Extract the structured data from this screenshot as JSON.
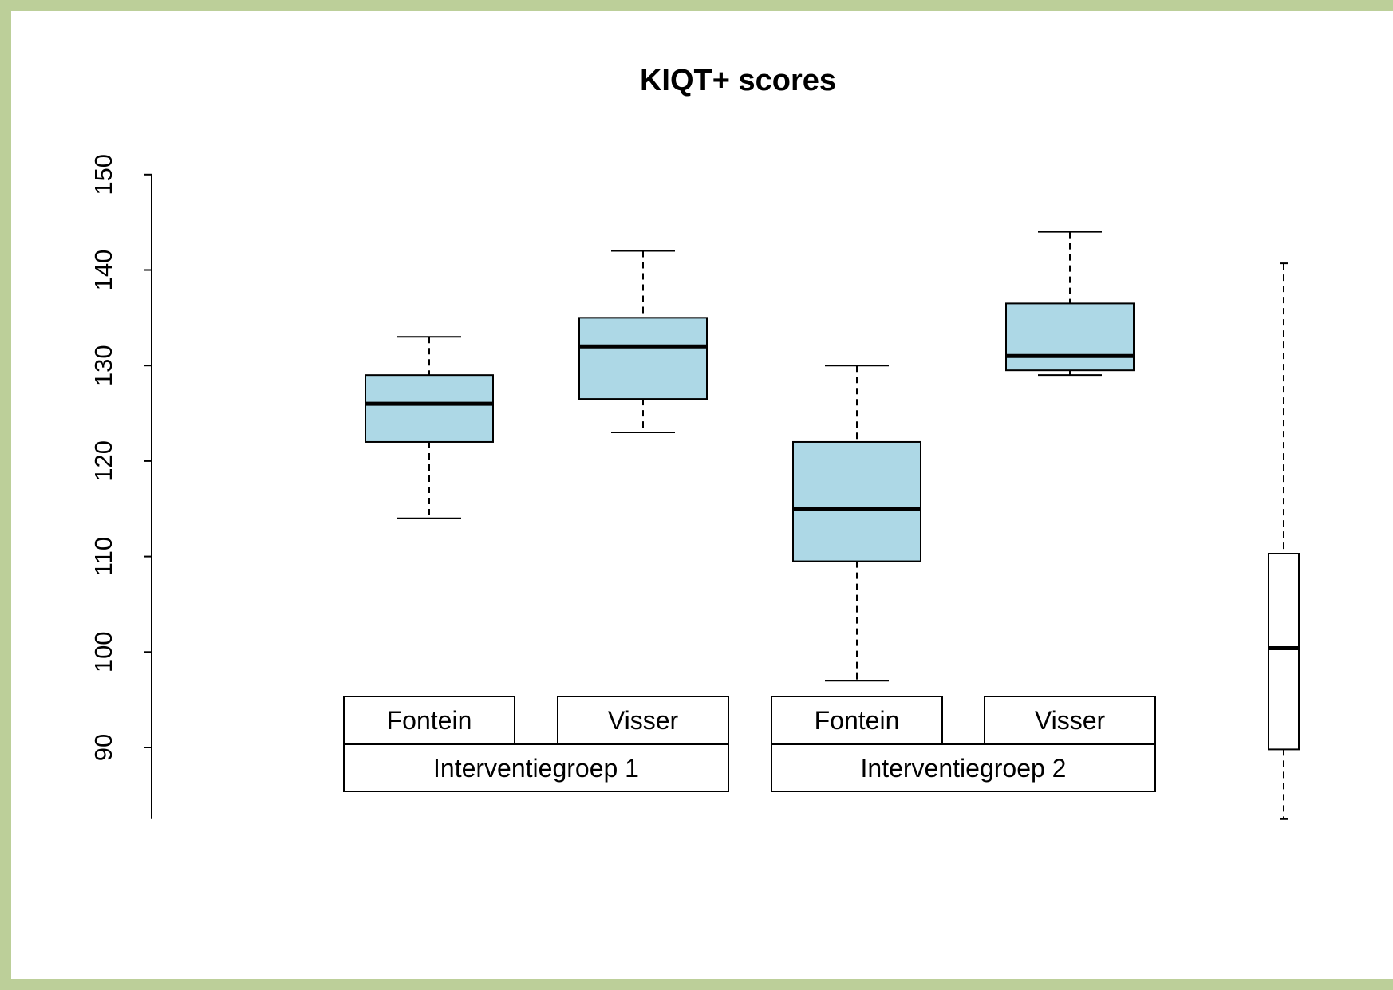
{
  "colors": {
    "frame": "#bccf99",
    "box_fill": "#add8e6",
    "reference_fill": "#ffffff",
    "stroke": "#000000"
  },
  "chart_data": {
    "type": "boxplot",
    "title": "KIQT+ scores",
    "xlabel": "",
    "ylabel": "",
    "ylim": [
      82.5,
      150
    ],
    "yticks": [
      90,
      100,
      110,
      120,
      130,
      140,
      150
    ],
    "grid": false,
    "boxes": [
      {
        "label": "Fontein",
        "group": "Interventiegroep 1",
        "min": 114,
        "q1": 122,
        "median": 126,
        "q3": 129,
        "max": 133,
        "fill": "#add8e6"
      },
      {
        "label": "Visser",
        "group": "Interventiegroep 1",
        "min": 123,
        "q1": 126.5,
        "median": 132,
        "q3": 135,
        "max": 142,
        "fill": "#add8e6"
      },
      {
        "label": "Fontein",
        "group": "Interventiegroep 2",
        "min": 97,
        "q1": 109.5,
        "median": 115,
        "q3": 122,
        "max": 130,
        "fill": "#add8e6"
      },
      {
        "label": "Visser",
        "group": "Interventiegroep 2",
        "min": 129,
        "q1": 129.5,
        "median": 131,
        "q3": 136.5,
        "max": 144,
        "fill": "#add8e6"
      },
      {
        "label": "",
        "group": "",
        "min": 82.5,
        "q1": 89.8,
        "median": 100.4,
        "q3": 110.3,
        "max": 140.7,
        "fill": "#ffffff"
      }
    ],
    "groups": [
      "Interventiegroep 1",
      "Interventiegroep 2"
    ]
  }
}
